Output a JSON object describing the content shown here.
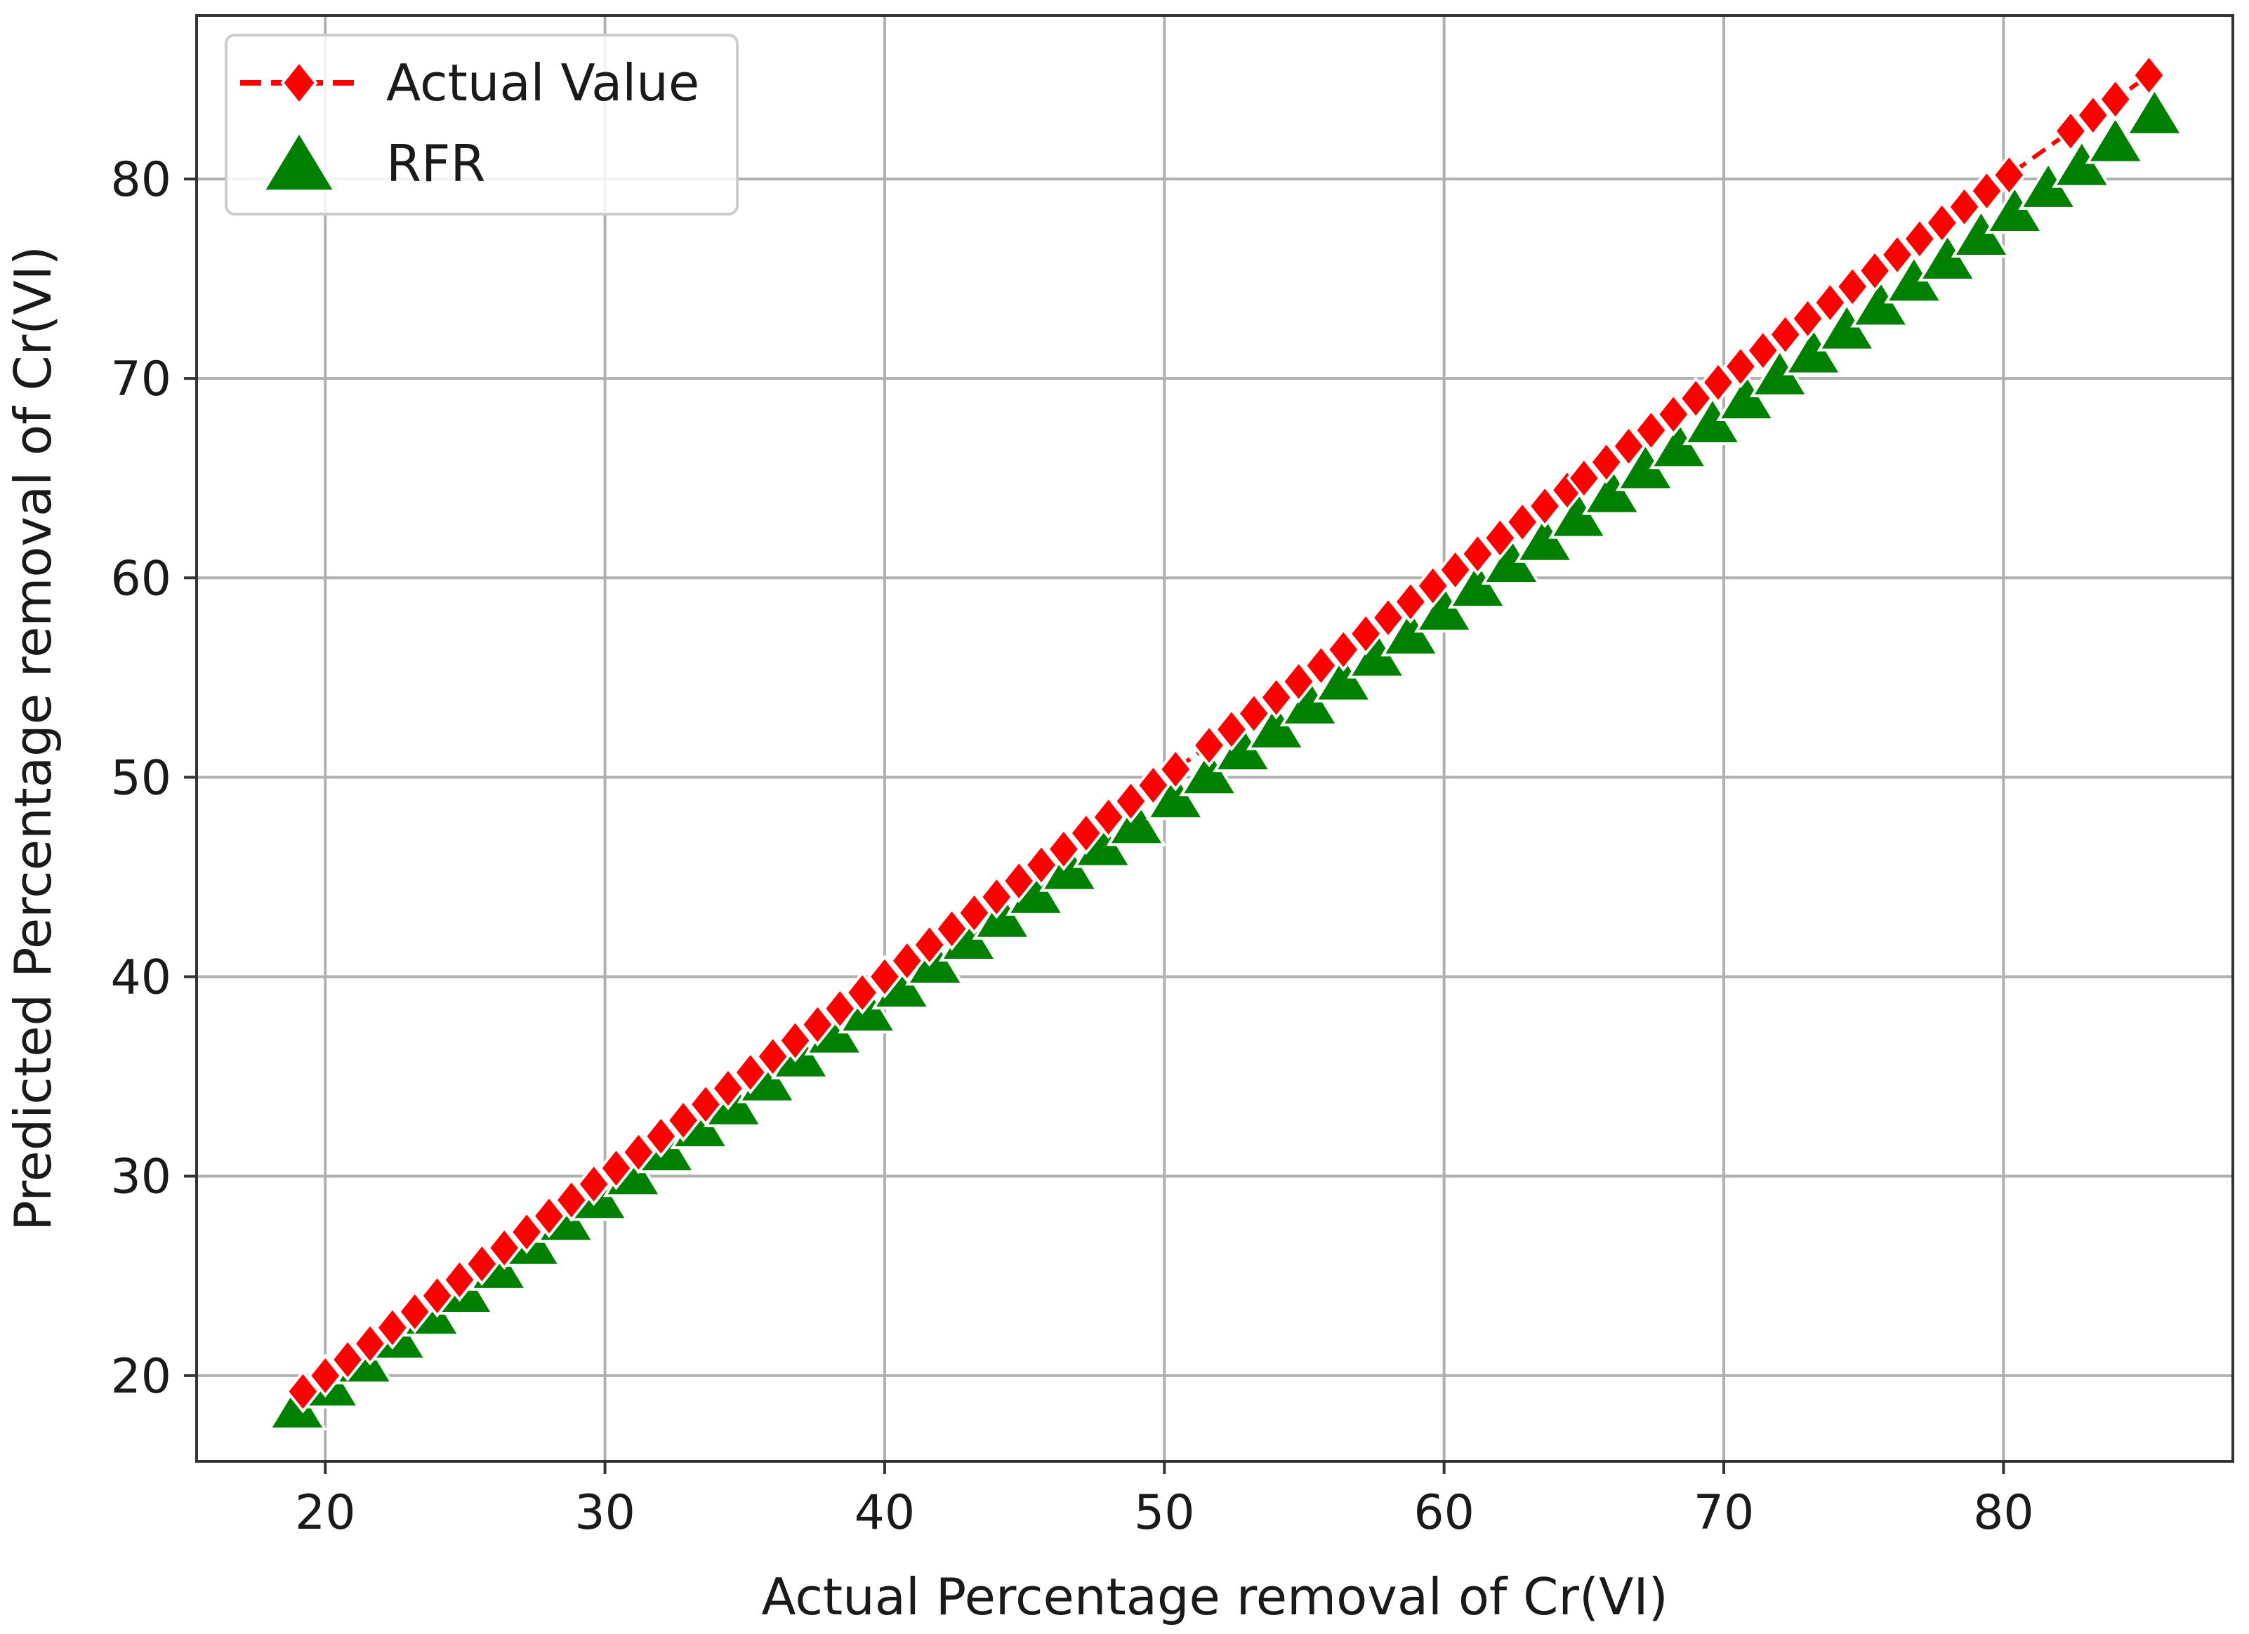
{
  "chart_data": {
    "type": "line",
    "title": "",
    "xlabel": "Actual Percentage removal of Cr(VI)",
    "ylabel": "Predicted Percentage removal of Cr(VI)",
    "xlim": [
      15.4,
      88.2
    ],
    "ylim": [
      15.7,
      88.2
    ],
    "xticks": [
      20,
      30,
      40,
      50,
      60,
      70,
      80
    ],
    "yticks": [
      20,
      30,
      40,
      50,
      60,
      70,
      80
    ],
    "grid": true,
    "legend_position": "top-left",
    "series": [
      {
        "name": "Actual Value",
        "style": "dashed line with diamond markers",
        "color": "#ff0000",
        "x": [
          19.2,
          20.0,
          20.8,
          21.6,
          22.4,
          23.2,
          24.0,
          24.8,
          25.6,
          26.4,
          27.2,
          28.0,
          28.8,
          29.6,
          30.4,
          31.2,
          32.0,
          32.8,
          33.6,
          34.4,
          35.2,
          36.0,
          36.8,
          37.6,
          38.4,
          39.2,
          40.0,
          40.8,
          41.6,
          42.4,
          43.2,
          44.0,
          44.8,
          45.6,
          46.4,
          47.2,
          48.0,
          48.8,
          49.6,
          50.4,
          51.6,
          52.4,
          53.2,
          54.0,
          54.8,
          55.6,
          56.4,
          57.2,
          58.0,
          58.8,
          59.6,
          60.4,
          61.2,
          62.0,
          62.8,
          63.6,
          64.4,
          65.0,
          65.8,
          66.6,
          67.4,
          68.2,
          69.0,
          69.8,
          70.6,
          71.4,
          72.2,
          73.0,
          73.8,
          74.6,
          75.4,
          76.2,
          77.0,
          77.8,
          78.6,
          79.4,
          80.2,
          82.4,
          83.2,
          84.0,
          85.2
        ],
        "y": [
          19.2,
          20.0,
          20.8,
          21.6,
          22.4,
          23.2,
          24.0,
          24.8,
          25.6,
          26.4,
          27.2,
          28.0,
          28.8,
          29.6,
          30.4,
          31.2,
          32.0,
          32.8,
          33.6,
          34.4,
          35.2,
          36.0,
          36.8,
          37.6,
          38.4,
          39.2,
          40.0,
          40.8,
          41.6,
          42.4,
          43.2,
          44.0,
          44.8,
          45.6,
          46.4,
          47.2,
          48.0,
          48.8,
          49.6,
          50.4,
          51.6,
          52.4,
          53.2,
          54.0,
          54.8,
          55.6,
          56.4,
          57.2,
          58.0,
          58.8,
          59.6,
          60.4,
          61.2,
          62.0,
          62.8,
          63.6,
          64.4,
          65.0,
          65.8,
          66.6,
          67.4,
          68.2,
          69.0,
          69.8,
          70.6,
          71.4,
          72.2,
          73.0,
          73.8,
          74.6,
          75.4,
          76.2,
          77.0,
          77.8,
          78.6,
          79.4,
          80.2,
          82.4,
          83.2,
          84.0,
          85.2
        ]
      },
      {
        "name": "RFR",
        "style": "triangle markers",
        "color": "#008000",
        "x": [
          19.0,
          20.2,
          21.4,
          22.6,
          23.8,
          25.0,
          26.2,
          27.4,
          28.6,
          29.8,
          31.0,
          32.2,
          33.4,
          34.6,
          35.8,
          37.0,
          38.2,
          39.4,
          40.6,
          41.8,
          43.0,
          44.2,
          45.4,
          46.6,
          47.8,
          49.0,
          50.4,
          51.6,
          52.8,
          54.0,
          55.2,
          56.4,
          57.6,
          58.8,
          60.0,
          61.2,
          62.4,
          63.6,
          64.8,
          66.0,
          67.2,
          68.4,
          69.6,
          70.8,
          72.0,
          73.2,
          74.4,
          75.6,
          76.8,
          78.0,
          79.2,
          80.4,
          81.6,
          82.8,
          84.0,
          85.4
        ],
        "y": [
          18.2,
          19.3,
          20.5,
          21.7,
          22.9,
          24.0,
          25.2,
          26.4,
          27.6,
          28.7,
          29.9,
          31.1,
          32.3,
          33.4,
          34.6,
          35.8,
          37.0,
          38.1,
          39.3,
          40.5,
          41.7,
          42.8,
          44.0,
          45.2,
          46.4,
          47.5,
          48.8,
          50.0,
          51.2,
          52.3,
          53.5,
          54.7,
          55.9,
          57.0,
          58.2,
          59.4,
          60.6,
          61.7,
          62.9,
          64.1,
          65.3,
          66.4,
          67.6,
          68.8,
          70.0,
          71.1,
          72.3,
          73.5,
          74.7,
          75.8,
          77.0,
          78.2,
          79.4,
          80.5,
          81.7,
          83.1
        ]
      }
    ]
  },
  "colors": {
    "actual": "#ff0000",
    "rfr": "#008000",
    "grid": "#b0b0b0",
    "axes": "#333333"
  }
}
